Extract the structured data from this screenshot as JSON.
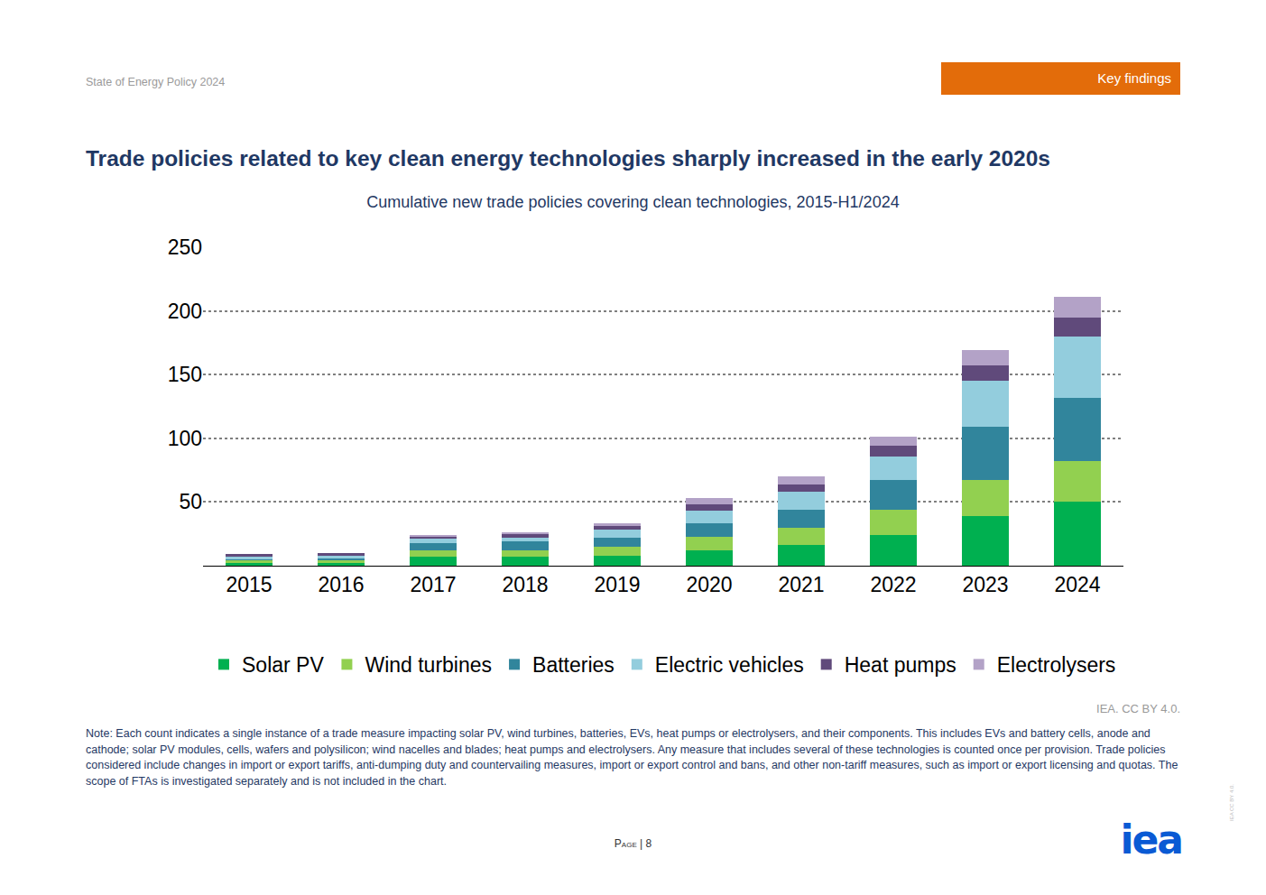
{
  "page": {
    "header": "State of Energy Policy 2024",
    "tag": "Key findings",
    "source": "IEA. CC BY 4.0.",
    "note": "Note: Each count indicates a single instance of a trade measure impacting solar PV, wind turbines, batteries, EVs, heat pumps or electrolysers, and their components. This includes EVs and battery cells, anode and cathode; solar PV modules, cells, wafers and polysilicon; wind nacelles and blades; heat pumps and electrolysers. Any measure that includes several of these technologies is counted once per provision. Trade policies considered include changes in import or export tariffs, anti-dumping duty and countervailing measures, import or export control and bans, and other non-tariff measures, such as import or export licensing and quotas. The scope of FTAs is investigated separately and is not included in the chart.",
    "page_number": "Page | 8",
    "logo": "iea",
    "side_mark": "IEA CC BY 4.0."
  },
  "chart_data": {
    "type": "bar",
    "stacked": true,
    "title": "Trade policies related to key clean energy technologies sharply increased in the early 2020s",
    "subtitle": "Cumulative new trade policies covering clean technologies, 2015-H1/2024",
    "categories": [
      "2015",
      "2016",
      "2017",
      "2018",
      "2019",
      "2020",
      "2021",
      "2022",
      "2023",
      "2024"
    ],
    "series": [
      {
        "name": "Solar PV",
        "color": "#00b050",
        "values": [
          2,
          2,
          7,
          7,
          8,
          12,
          16,
          24,
          39,
          50
        ]
      },
      {
        "name": "Wind turbines",
        "color": "#92d050",
        "values": [
          2,
          2,
          5,
          5,
          7,
          11,
          14,
          20,
          28,
          32
        ]
      },
      {
        "name": "Batteries",
        "color": "#31859c",
        "values": [
          1,
          2,
          6,
          7,
          7,
          10,
          14,
          23,
          42,
          50
        ]
      },
      {
        "name": "Electric vehicles",
        "color": "#93cddd",
        "values": [
          2,
          2,
          3,
          3,
          6,
          10,
          14,
          19,
          36,
          48
        ]
      },
      {
        "name": "Heat pumps",
        "color": "#604a7b",
        "values": [
          2,
          2,
          2,
          3,
          3,
          5,
          6,
          8,
          12,
          15
        ]
      },
      {
        "name": "Electrolysers",
        "color": "#b3a2c7",
        "values": [
          0,
          0,
          1,
          1,
          2,
          5,
          6,
          7,
          12,
          16
        ]
      }
    ],
    "ylim": [
      0,
      250
    ],
    "yticks": [
      50,
      100,
      150,
      200,
      250
    ],
    "grid": true,
    "legend": "bottom"
  }
}
